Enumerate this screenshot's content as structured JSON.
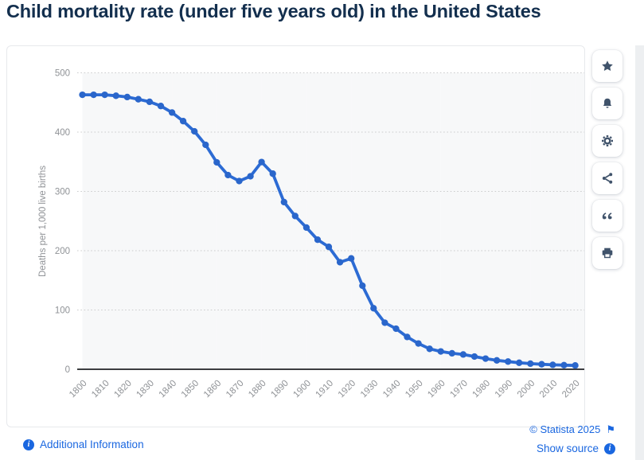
{
  "page": {
    "title": "Child mortality rate (under five years old) in the United States"
  },
  "colors": {
    "title_navy": "#132f4e",
    "link_blue": "#1a67e0",
    "icon_navy": "#40536b",
    "line": "#2c6bd4",
    "marker": "#2a66cb",
    "band": "#f7f8f9",
    "grid": "#cbcccd",
    "axis": "#202225",
    "tick_text": "#8f9296"
  },
  "toolbar": {
    "buttons": [
      {
        "name": "favorite-button",
        "icon": "star-icon"
      },
      {
        "name": "alerts-button",
        "icon": "bell-icon"
      },
      {
        "name": "settings-button",
        "icon": "gear-icon"
      },
      {
        "name": "share-button",
        "icon": "share-icon"
      },
      {
        "name": "cite-button",
        "icon": "quote-icon"
      },
      {
        "name": "print-button",
        "icon": "print-icon"
      }
    ]
  },
  "footer": {
    "additional_info_label": "Additional Information",
    "copyright_label": "© Statista 2025",
    "flag_icon": "⚑",
    "show_source_label": "Show source",
    "info_icon_glyph": "i"
  },
  "chart_data": {
    "type": "line",
    "title": "Child mortality rate (under five years old) in the United States",
    "xlabel": "",
    "ylabel": "Deaths per 1,000 live births",
    "ylim": [
      0,
      500
    ],
    "grid": "horizontal-dotted",
    "background_bands": "alternating decade stripes starting grey at 1800",
    "legend": "none",
    "x": [
      1800,
      1805,
      1810,
      1815,
      1820,
      1825,
      1830,
      1835,
      1840,
      1845,
      1850,
      1855,
      1860,
      1865,
      1870,
      1875,
      1880,
      1885,
      1890,
      1895,
      1900,
      1905,
      1910,
      1915,
      1920,
      1925,
      1930,
      1935,
      1940,
      1945,
      1950,
      1955,
      1960,
      1965,
      1970,
      1975,
      1980,
      1985,
      1990,
      1995,
      2000,
      2005,
      2010,
      2015,
      2020
    ],
    "values": [
      462.9,
      462.9,
      462.9,
      461.4,
      459.2,
      455.5,
      451.2,
      444.0,
      433.0,
      418.5,
      401.4,
      378.5,
      349.0,
      327.5,
      317.5,
      325.5,
      349.5,
      330.0,
      282.0,
      258.5,
      239.0,
      218.5,
      206.5,
      180.5,
      187.0,
      141.0,
      103.0,
      78.5,
      68.5,
      54.5,
      43.5,
      34.5,
      30.0,
      27.0,
      25.0,
      21.5,
      18.0,
      15.0,
      13.0,
      11.0,
      9.5,
      8.5,
      7.5,
      7.0,
      6.5
    ],
    "x_ticks": [
      1800,
      1810,
      1820,
      1830,
      1840,
      1850,
      1860,
      1870,
      1880,
      1890,
      1900,
      1910,
      1920,
      1930,
      1940,
      1950,
      1960,
      1970,
      1980,
      1990,
      2000,
      2010,
      2020
    ],
    "y_ticks": [
      0,
      100,
      200,
      300,
      400,
      500
    ]
  }
}
